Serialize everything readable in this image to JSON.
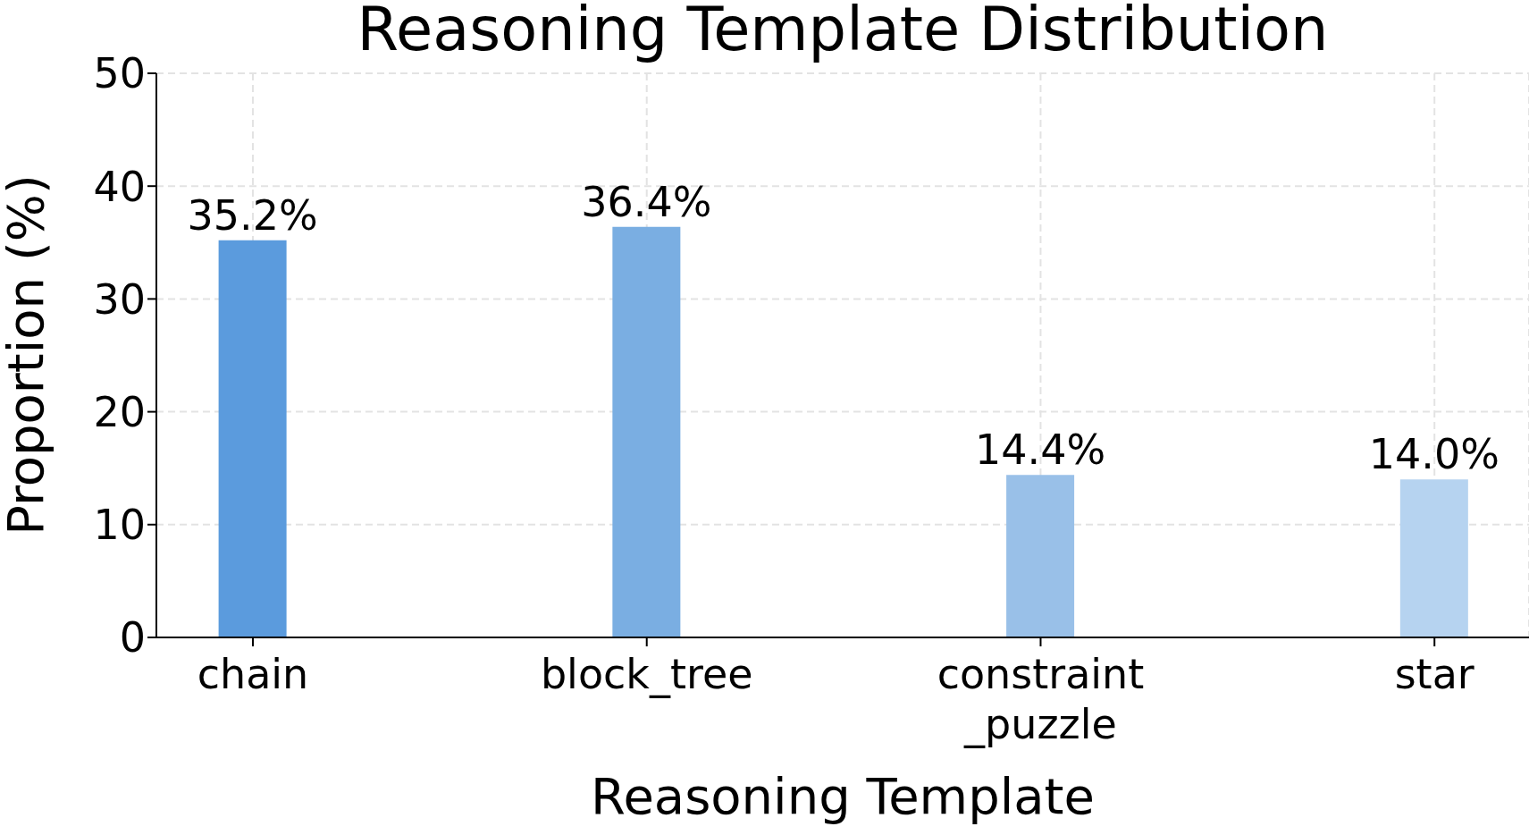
{
  "chart_data": {
    "type": "bar",
    "title": "Reasoning Template Distribution",
    "xlabel": "Reasoning Template",
    "ylabel": "Proportion (%)",
    "categories": [
      "chain",
      "block_tree",
      "constraint\n_puzzle",
      "star"
    ],
    "values": [
      35.2,
      36.4,
      14.4,
      14.0
    ],
    "colors": [
      "#5b9bdd",
      "#7aaee2",
      "#99c0e8",
      "#b6d3f0"
    ],
    "value_labels": [
      "35.2%",
      "36.4%",
      "14.4%",
      "14.0%"
    ],
    "ylim": [
      0,
      50
    ],
    "yticks": [
      0,
      10,
      20,
      30,
      40,
      50
    ],
    "grid": true
  }
}
